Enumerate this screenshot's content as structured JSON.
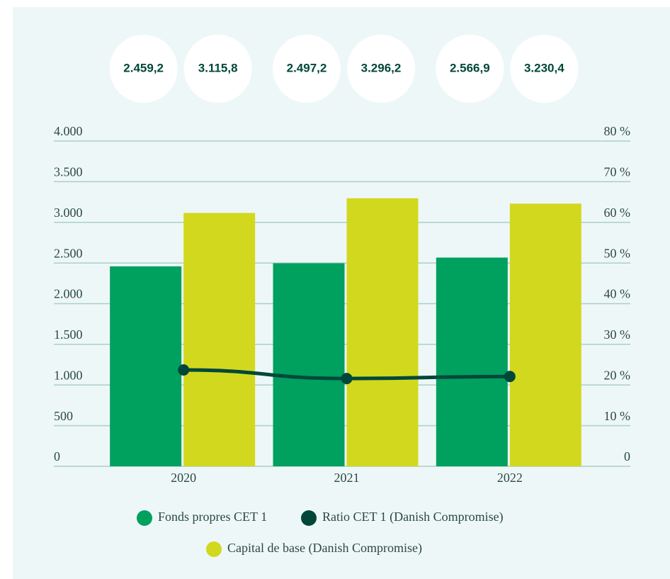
{
  "chart_data": {
    "type": "bar",
    "categories": [
      "2020",
      "2021",
      "2022"
    ],
    "series": [
      {
        "name": "Fonds propres CET 1",
        "color": "#00a05f",
        "values": [
          2459.2,
          2497.2,
          2566.9
        ],
        "value_labels": [
          "2.459,2",
          "2.497,2",
          "2.566,9"
        ]
      },
      {
        "name": "Ratio CET 1 (Danish Compromise)",
        "color": "#00473a",
        "type": "line",
        "axis": "y2",
        "values": [
          23.7,
          21.6,
          22.1
        ]
      },
      {
        "name": "Capital de base (Danish Compromise)",
        "color": "#d2d81e",
        "values": [
          3115.8,
          3296.2,
          3230.4
        ],
        "value_labels": [
          "3.115,8",
          "3.296,2",
          "3.230,4"
        ]
      }
    ],
    "ylim": [
      0,
      4000
    ],
    "yticks": [
      0,
      500,
      {
        "value": 1000,
        "label": "1.000"
      },
      {
        "value": 1500,
        "label": "1.500"
      },
      {
        "value": 2000,
        "label": "2.000"
      },
      {
        "value": 2500,
        "label": "2.500"
      },
      {
        "value": 3000,
        "label": "3.000"
      },
      {
        "value": 3500,
        "label": "3.500"
      },
      {
        "value": 4000,
        "label": "4.000"
      }
    ],
    "y2lim": [
      0,
      80
    ],
    "y2ticks": [
      0,
      {
        "value": 10,
        "label": "10 %"
      },
      {
        "value": 20,
        "label": "20 %"
      },
      {
        "value": 30,
        "label": "30 %"
      },
      {
        "value": 40,
        "label": "40 %"
      },
      {
        "value": 50,
        "label": "50 %"
      },
      {
        "value": 60,
        "label": "60 %"
      },
      {
        "value": 70,
        "label": "70 %"
      },
      {
        "value": 80,
        "label": "80 %"
      }
    ],
    "grid": true
  }
}
